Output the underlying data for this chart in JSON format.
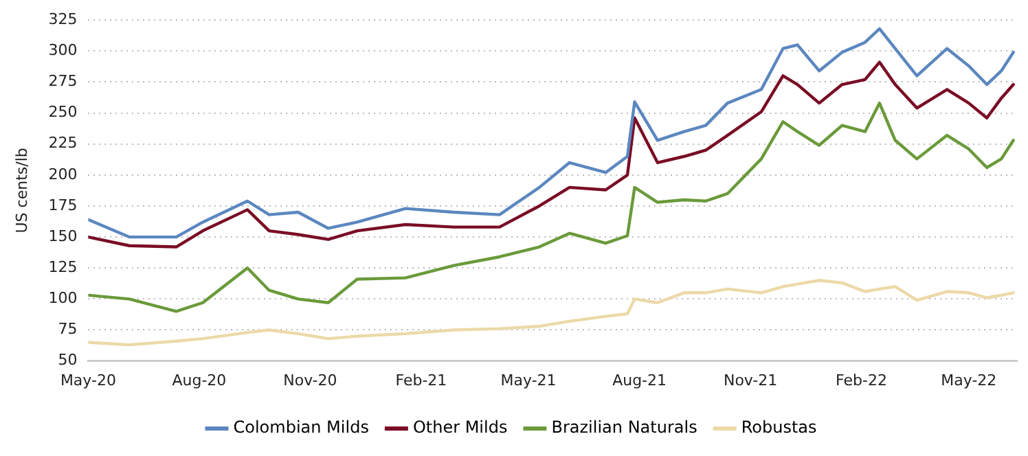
{
  "chart_data": {
    "type": "line",
    "ylabel": "US cents/lb",
    "x": [
      "2020-05-01",
      "2020-06-04",
      "2020-07-13",
      "2020-08-04",
      "2020-09-10",
      "2020-09-28",
      "2020-10-22",
      "2020-11-16",
      "2020-12-10",
      "2021-01-19",
      "2021-02-28",
      "2021-04-07",
      "2021-05-10",
      "2021-06-04",
      "2021-07-04",
      "2021-07-22",
      "2021-07-28",
      "2021-08-16",
      "2021-09-07",
      "2021-09-25",
      "2021-10-13",
      "2021-11-10",
      "2021-11-28",
      "2021-12-10",
      "2021-12-28",
      "2022-01-16",
      "2022-02-04",
      "2022-02-16",
      "2022-03-01",
      "2022-03-19",
      "2022-04-13",
      "2022-05-01",
      "2022-05-16",
      "2022-05-28",
      "2022-06-07"
    ],
    "series": [
      {
        "name": "Colombian Milds",
        "color": "#5b87c0",
        "values": [
          164,
          150,
          150,
          162,
          179,
          168,
          170,
          157,
          162,
          173,
          170,
          168,
          190,
          210,
          202,
          215,
          259,
          228,
          235,
          240,
          258,
          269,
          302,
          305,
          284,
          299,
          307,
          318,
          302,
          280,
          302,
          288,
          273,
          284,
          299
        ]
      },
      {
        "name": "Other Milds",
        "color": "#7a0c25",
        "values": [
          150,
          143,
          142,
          155,
          172,
          155,
          152,
          148,
          155,
          160,
          158,
          158,
          175,
          190,
          188,
          200,
          246,
          210,
          215,
          220,
          232,
          251,
          280,
          273,
          258,
          273,
          277,
          291,
          273,
          254,
          269,
          258,
          246,
          262,
          273
        ]
      },
      {
        "name": "Brazilian Naturals",
        "color": "#6a9a3a",
        "values": [
          103,
          100,
          90,
          97,
          125,
          107,
          100,
          97,
          116,
          117,
          127,
          134,
          142,
          153,
          145,
          151,
          190,
          178,
          180,
          179,
          185,
          213,
          243,
          235,
          224,
          240,
          235,
          258,
          228,
          213,
          232,
          221,
          206,
          213,
          228
        ]
      },
      {
        "name": "Robustas",
        "color": "#ecd9a8",
        "values": [
          65,
          63,
          66,
          68,
          73,
          75,
          72,
          68,
          70,
          72,
          75,
          76,
          78,
          82,
          86,
          88,
          100,
          97,
          105,
          105,
          108,
          105,
          110,
          112,
          115,
          113,
          106,
          108,
          110,
          99,
          106,
          105,
          101,
          103,
          105
        ]
      }
    ],
    "xlim": [
      "2020-05-01",
      "2022-06-10"
    ],
    "xticks": [
      {
        "value": "2020-05",
        "label": "May-20"
      },
      {
        "value": "2020-08",
        "label": "Aug-20"
      },
      {
        "value": "2020-11",
        "label": "Nov-20"
      },
      {
        "value": "2021-02",
        "label": "Feb-21"
      },
      {
        "value": "2021-05",
        "label": "May-21"
      },
      {
        "value": "2021-08",
        "label": "Aug-21"
      },
      {
        "value": "2021-11",
        "label": "Nov-21"
      },
      {
        "value": "2022-02",
        "label": "Feb-22"
      },
      {
        "value": "2022-05",
        "label": "May-22"
      }
    ],
    "ylim": [
      50,
      325
    ],
    "yticks": [
      50,
      75,
      100,
      125,
      150,
      175,
      200,
      225,
      250,
      275,
      300,
      325
    ],
    "grid": "y",
    "legend": "bottom",
    "marker": "none",
    "line_style": "solid"
  }
}
